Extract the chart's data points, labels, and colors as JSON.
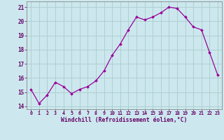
{
  "x": [
    0,
    1,
    2,
    3,
    4,
    5,
    6,
    7,
    8,
    9,
    10,
    11,
    12,
    13,
    14,
    15,
    16,
    17,
    18,
    19,
    20,
    21,
    22,
    23
  ],
  "y": [
    15.2,
    14.2,
    14.8,
    15.7,
    15.4,
    14.9,
    15.2,
    15.4,
    15.8,
    16.5,
    17.6,
    18.4,
    19.4,
    20.3,
    20.1,
    20.3,
    20.6,
    21.0,
    20.9,
    20.3,
    19.6,
    19.4,
    17.8,
    16.2
  ],
  "line_color": "#990099",
  "marker_color": "#990099",
  "bg_color": "#cce8ee",
  "grid_color": "#aacccc",
  "axis_color": "#666666",
  "tick_color": "#660066",
  "xlabel": "Windchill (Refroidissement éolien,°C)",
  "ylim": [
    13.8,
    21.4
  ],
  "xlim": [
    -0.5,
    23.5
  ],
  "yticks": [
    14,
    15,
    16,
    17,
    18,
    19,
    20,
    21
  ],
  "xticks": [
    0,
    1,
    2,
    3,
    4,
    5,
    6,
    7,
    8,
    9,
    10,
    11,
    12,
    13,
    14,
    15,
    16,
    17,
    18,
    19,
    20,
    21,
    22,
    23
  ]
}
